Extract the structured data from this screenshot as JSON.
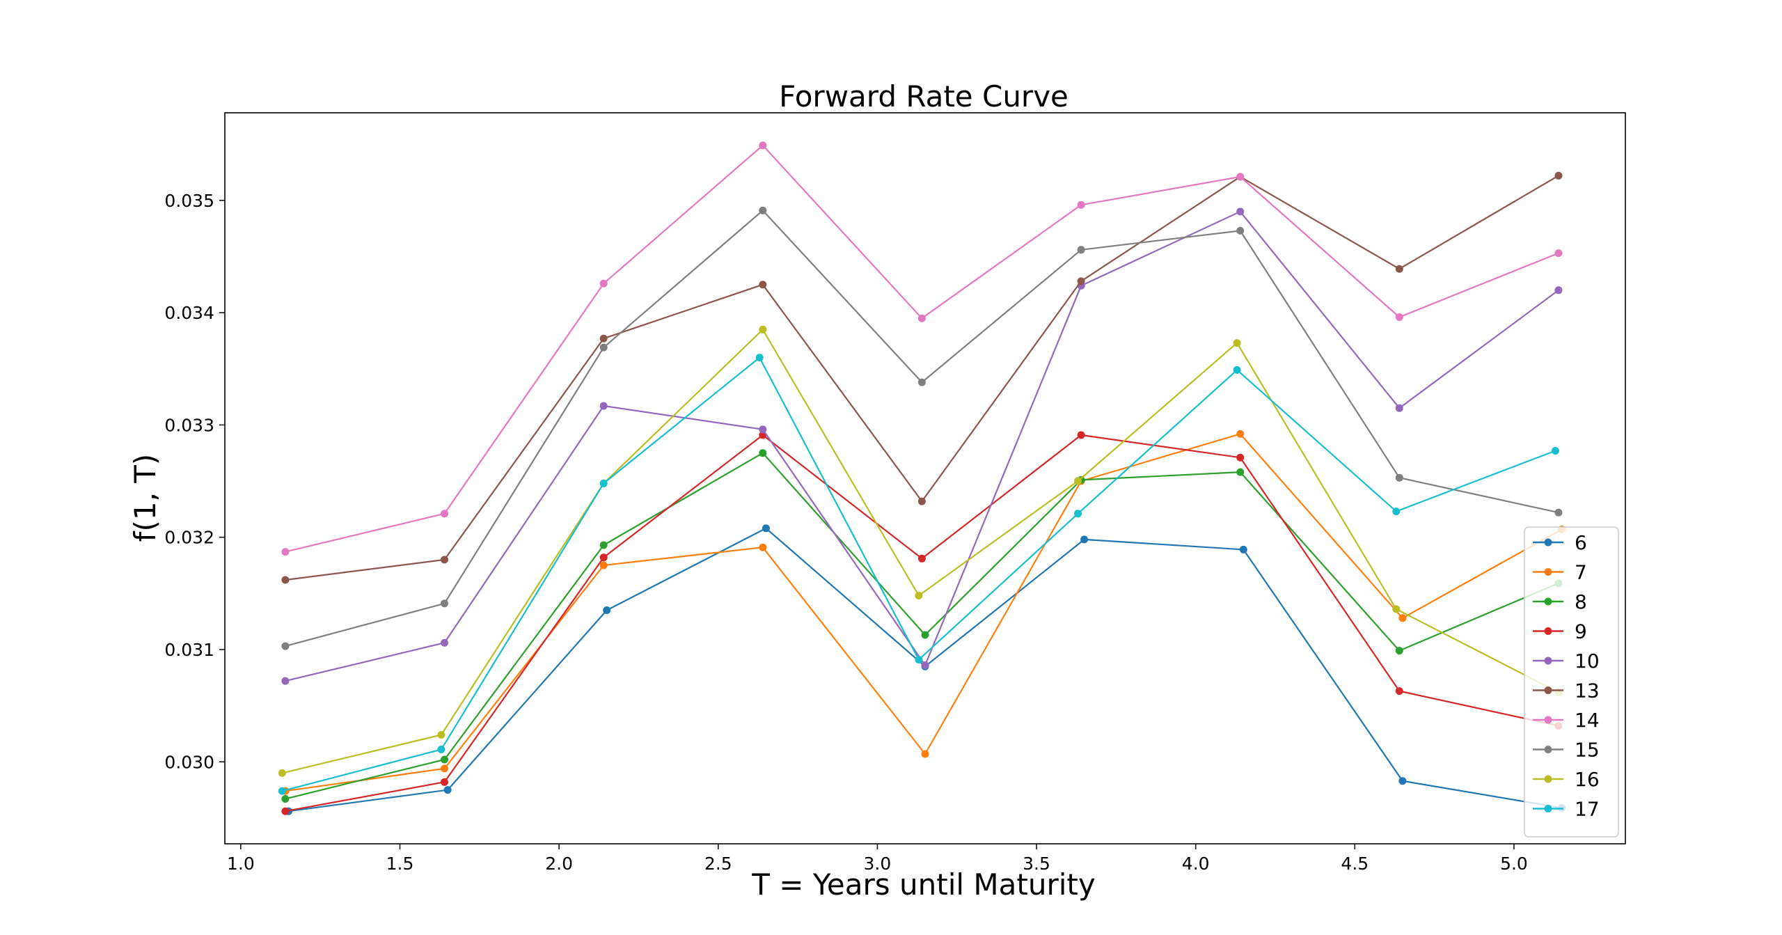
{
  "chart_data": {
    "type": "line",
    "title": "Forward Rate Curve",
    "xlabel": "T = Years until Maturity",
    "ylabel": "f(1, T)",
    "xlim": [
      0.95,
      5.35
    ],
    "ylim": [
      0.02927,
      0.03578
    ],
    "xticks": [
      1.0,
      1.5,
      2.0,
      2.5,
      3.0,
      3.5,
      4.0,
      4.5,
      5.0
    ],
    "xtick_labels": [
      "1.0",
      "1.5",
      "2.0",
      "2.5",
      "3.0",
      "3.5",
      "4.0",
      "4.5",
      "5.0"
    ],
    "yticks": [
      0.03,
      0.031,
      0.032,
      0.033,
      0.034,
      0.035
    ],
    "ytick_labels": [
      "0.030",
      "0.031",
      "0.032",
      "0.033",
      "0.034",
      "0.035"
    ],
    "grid": false,
    "legend_position": "lower-right",
    "series": [
      {
        "name": "6",
        "color": "#1f77b4",
        "x": [
          1.15,
          1.65,
          2.15,
          2.65,
          3.15,
          3.65,
          4.15,
          4.65,
          5.15
        ],
        "y": [
          0.02956,
          0.02975,
          0.03135,
          0.03208,
          0.03085,
          0.03198,
          0.03189,
          0.02983,
          0.02959
        ]
      },
      {
        "name": "7",
        "color": "#ff7f0e",
        "x": [
          1.14,
          1.64,
          2.14,
          2.64,
          3.15,
          3.64,
          4.14,
          4.65,
          5.15
        ],
        "y": [
          0.02974,
          0.02994,
          0.03175,
          0.03191,
          0.03007,
          0.0325,
          0.03292,
          0.03128,
          0.03207
        ]
      },
      {
        "name": "8",
        "color": "#2ca02c",
        "x": [
          1.14,
          1.64,
          2.14,
          2.64,
          3.15,
          3.64,
          4.14,
          4.64,
          5.14
        ],
        "y": [
          0.02967,
          0.03002,
          0.03193,
          0.03275,
          0.03113,
          0.03251,
          0.03258,
          0.03099,
          0.03159
        ]
      },
      {
        "name": "9",
        "color": "#d62728",
        "x": [
          1.14,
          1.64,
          2.14,
          2.64,
          3.14,
          3.64,
          4.14,
          4.64,
          5.14
        ],
        "y": [
          0.02956,
          0.02982,
          0.03182,
          0.03291,
          0.03181,
          0.03291,
          0.03271,
          0.03063,
          0.03032
        ]
      },
      {
        "name": "10",
        "color": "#9467bd",
        "x": [
          1.14,
          1.64,
          2.14,
          2.64,
          3.15,
          3.64,
          4.14,
          4.64,
          5.14
        ],
        "y": [
          0.03072,
          0.03106,
          0.03317,
          0.03296,
          0.03086,
          0.03424,
          0.0349,
          0.03315,
          0.0342
        ]
      },
      {
        "name": "13",
        "color": "#8c564b",
        "x": [
          1.14,
          1.64,
          2.14,
          2.64,
          3.14,
          3.64,
          4.14,
          4.64,
          5.14
        ],
        "y": [
          0.03162,
          0.0318,
          0.03377,
          0.03425,
          0.03232,
          0.03428,
          0.03521,
          0.03439,
          0.03522
        ]
      },
      {
        "name": "14",
        "color": "#e377c2",
        "x": [
          1.14,
          1.64,
          2.14,
          2.64,
          3.14,
          3.64,
          4.14,
          4.64,
          5.14
        ],
        "y": [
          0.03187,
          0.03221,
          0.03426,
          0.03549,
          0.03395,
          0.03496,
          0.03521,
          0.03396,
          0.03453
        ]
      },
      {
        "name": "15",
        "color": "#7f7f7f",
        "x": [
          1.14,
          1.64,
          2.14,
          2.64,
          3.14,
          3.64,
          4.14,
          4.64,
          5.14
        ],
        "y": [
          0.03103,
          0.03141,
          0.03369,
          0.03491,
          0.03338,
          0.03456,
          0.03473,
          0.03253,
          0.03222
        ]
      },
      {
        "name": "16",
        "color": "#bcbd22",
        "x": [
          1.13,
          1.63,
          2.14,
          2.64,
          3.13,
          3.63,
          4.13,
          4.63,
          5.14
        ],
        "y": [
          0.0299,
          0.03024,
          0.03248,
          0.03385,
          0.03148,
          0.0325,
          0.03373,
          0.03136,
          0.03062
        ]
      },
      {
        "name": "17",
        "color": "#17becf",
        "x": [
          1.13,
          1.63,
          2.14,
          2.63,
          3.13,
          3.63,
          4.13,
          4.63,
          5.13
        ],
        "y": [
          0.02974,
          0.03011,
          0.03248,
          0.0336,
          0.03091,
          0.03221,
          0.03349,
          0.03223,
          0.03277
        ]
      }
    ]
  }
}
